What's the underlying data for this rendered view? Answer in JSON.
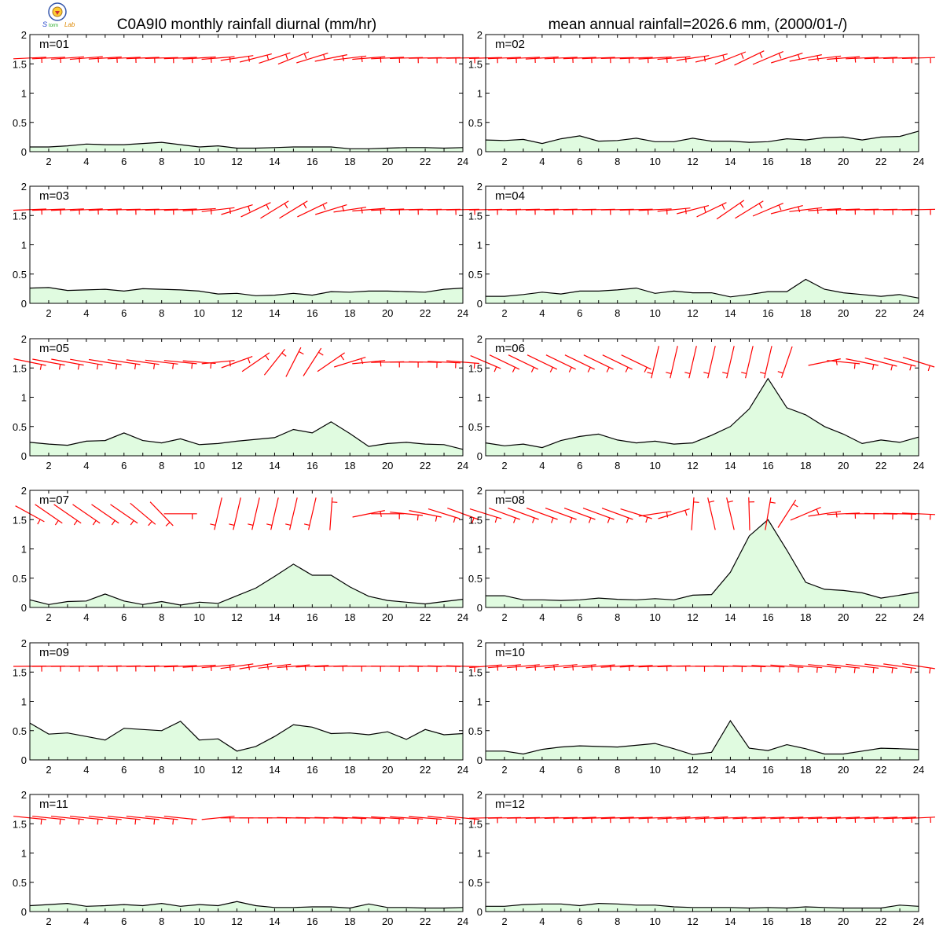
{
  "title_left": "C0A9I0 monthly rainfall diurnal (mm/hr)",
  "title_right": "mean annual rainfall=2026.6 mm, (2000/01-/)",
  "logo": {
    "icon": "weather-logo-icon",
    "text": "Storm Lab"
  },
  "chart_data": {
    "type": "area",
    "xlim": [
      1,
      24
    ],
    "ylim": [
      0,
      2
    ],
    "x_ticks": [
      2,
      4,
      6,
      8,
      10,
      12,
      14,
      16,
      18,
      20,
      22,
      24
    ],
    "y_ticks": [
      "0",
      "0.5",
      "1",
      "1.5",
      "2"
    ],
    "rain_color": "#e0fbe0",
    "barb_color": "#ff0000",
    "panels": [
      {
        "label": "m=01",
        "values": [
          0.08,
          0.08,
          0.1,
          0.13,
          0.12,
          0.12,
          0.14,
          0.16,
          0.12,
          0.08,
          0.1,
          0.06,
          0.06,
          0.07,
          0.08,
          0.08,
          0.08,
          0.05,
          0.05,
          0.06,
          0.07,
          0.07,
          0.06,
          0.07
        ],
        "barb_tilt": [
          0.05,
          0.05,
          0.07,
          0.08,
          0.06,
          0.05,
          0.04,
          0.03,
          0.04,
          0.06,
          0.08,
          0.15,
          0.25,
          0.32,
          0.38,
          0.3,
          0.2,
          0.12,
          0.08,
          0.05,
          0.03,
          0.02,
          0.02,
          0.02
        ]
      },
      {
        "label": "m=02",
        "values": [
          0.2,
          0.19,
          0.21,
          0.14,
          0.22,
          0.27,
          0.18,
          0.19,
          0.23,
          0.17,
          0.17,
          0.23,
          0.18,
          0.18,
          0.16,
          0.17,
          0.22,
          0.2,
          0.24,
          0.25,
          0.2,
          0.25,
          0.26,
          0.35
        ],
        "barb_tilt": [
          0.03,
          0.04,
          0.05,
          0.06,
          0.05,
          0.04,
          0.04,
          0.03,
          0.04,
          0.06,
          0.08,
          0.15,
          0.25,
          0.38,
          0.45,
          0.4,
          0.3,
          0.2,
          0.12,
          0.08,
          0.05,
          0.04,
          0.03,
          0.03
        ],
        "barb_extend": true
      },
      {
        "label": "m=03",
        "values": [
          0.26,
          0.27,
          0.22,
          0.23,
          0.24,
          0.21,
          0.25,
          0.24,
          0.23,
          0.21,
          0.16,
          0.17,
          0.13,
          0.14,
          0.17,
          0.14,
          0.2,
          0.19,
          0.21,
          0.21,
          0.2,
          0.19,
          0.24,
          0.26
        ],
        "barb_tilt": [
          0.04,
          0.04,
          0.05,
          0.05,
          0.04,
          0.03,
          0.03,
          0.03,
          0.04,
          0.06,
          0.12,
          0.3,
          0.45,
          0.55,
          0.55,
          0.45,
          0.3,
          0.15,
          0.08,
          0.04,
          0.03,
          0.02,
          0.02,
          0.02
        ]
      },
      {
        "label": "m=04",
        "values": [
          0.12,
          0.12,
          0.15,
          0.19,
          0.16,
          0.21,
          0.21,
          0.23,
          0.26,
          0.17,
          0.21,
          0.18,
          0.18,
          0.11,
          0.15,
          0.2,
          0.2,
          0.41,
          0.24,
          0.18,
          0.15,
          0.12,
          0.15,
          0.09
        ],
        "barb_tilt": [
          0.02,
          0.02,
          0.03,
          0.03,
          0.03,
          0.02,
          0.02,
          0.02,
          0.03,
          0.05,
          0.1,
          0.25,
          0.45,
          0.6,
          0.55,
          0.4,
          0.25,
          0.12,
          0.06,
          0.04,
          0.03,
          0.02,
          0.02,
          0.02
        ],
        "barb_extend": true
      },
      {
        "label": "m=05",
        "values": [
          0.23,
          0.2,
          0.18,
          0.25,
          0.26,
          0.39,
          0.26,
          0.22,
          0.29,
          0.19,
          0.21,
          0.25,
          0.28,
          0.31,
          0.45,
          0.39,
          0.58,
          0.38,
          0.16,
          0.21,
          0.23,
          0.2,
          0.19,
          0.11
        ],
        "barb_tilt": [
          -0.2,
          -0.18,
          -0.18,
          -0.17,
          -0.16,
          -0.15,
          -0.14,
          -0.12,
          -0.1,
          -0.08,
          0.1,
          0.35,
          0.6,
          0.9,
          1.1,
          1.0,
          0.6,
          0.3,
          0.1,
          0.02,
          0.0,
          -0.02,
          -0.05,
          -0.08
        ]
      },
      {
        "label": "m=06",
        "values": [
          0.22,
          0.17,
          0.2,
          0.14,
          0.26,
          0.33,
          0.37,
          0.27,
          0.22,
          0.25,
          0.2,
          0.22,
          0.35,
          0.5,
          0.8,
          1.32,
          0.82,
          0.7,
          0.5,
          0.37,
          0.21,
          0.27,
          0.23,
          0.32
        ],
        "barb_tilt": [
          -0.4,
          -0.45,
          -0.45,
          -0.45,
          -0.45,
          -0.45,
          -0.45,
          -0.45,
          -0.45,
          -1.8,
          -1.8,
          -1.8,
          -1.8,
          -1.8,
          -1.8,
          -1.8,
          -1.9,
          null,
          0.2,
          -0.1,
          -0.2,
          -0.25,
          -0.25,
          -0.3
        ],
        "barb_extend": true
      },
      {
        "label": "m=07",
        "values": [
          0.13,
          0.05,
          0.1,
          0.11,
          0.23,
          0.11,
          0.05,
          0.1,
          0.04,
          0.09,
          0.07,
          0.2,
          0.33,
          0.53,
          0.74,
          0.55,
          0.55,
          0.35,
          0.19,
          0.12,
          0.09,
          0.06,
          0.1,
          0.14
        ],
        "barb_tilt": [
          -0.5,
          -0.6,
          -0.6,
          -0.6,
          -0.6,
          -0.6,
          -0.7,
          -0.8,
          0.0,
          null,
          -1.8,
          -1.8,
          -1.8,
          -1.8,
          -1.8,
          -1.8,
          1.5,
          null,
          0.2,
          0.0,
          -0.1,
          -0.2,
          -0.3,
          -0.35
        ]
      },
      {
        "label": "m=08",
        "values": [
          0.2,
          0.2,
          0.13,
          0.13,
          0.12,
          0.13,
          0.16,
          0.14,
          0.13,
          0.15,
          0.13,
          0.21,
          0.22,
          0.6,
          1.22,
          1.5,
          0.98,
          0.43,
          0.31,
          0.29,
          0.25,
          0.16,
          0.21,
          0.26
        ],
        "barb_tilt": [
          -0.3,
          -0.35,
          -0.35,
          -0.35,
          -0.35,
          -0.35,
          -0.35,
          -0.35,
          -0.3,
          0.15,
          0.3,
          1.5,
          1.8,
          1.8,
          1.6,
          1.4,
          1.0,
          0.4,
          0.15,
          0.05,
          0.0,
          -0.02,
          -0.03,
          -0.05
        ],
        "barb_extend": true
      },
      {
        "label": "m=09",
        "values": [
          0.63,
          0.44,
          0.46,
          0.4,
          0.34,
          0.54,
          0.52,
          0.5,
          0.66,
          0.34,
          0.36,
          0.15,
          0.23,
          0.4,
          0.6,
          0.56,
          0.45,
          0.46,
          0.43,
          0.48,
          0.35,
          0.52,
          0.43,
          0.45
        ],
        "barb_tilt": [
          0.01,
          0.01,
          0.01,
          0.02,
          0.02,
          0.02,
          0.02,
          0.03,
          0.04,
          0.06,
          0.09,
          0.14,
          0.16,
          0.12,
          0.08,
          0.05,
          0.03,
          0.01,
          0.0,
          -0.01,
          -0.01,
          -0.02,
          -0.02,
          -0.03
        ]
      },
      {
        "label": "m=10",
        "values": [
          0.15,
          0.15,
          0.1,
          0.18,
          0.22,
          0.24,
          0.23,
          0.22,
          0.25,
          0.28,
          0.19,
          0.09,
          0.13,
          0.67,
          0.2,
          0.16,
          0.26,
          0.19,
          0.1,
          0.1,
          0.15,
          0.2,
          0.19,
          0.18
        ],
        "barb_tilt": [
          0.08,
          0.09,
          0.09,
          0.1,
          0.1,
          0.09,
          0.08,
          0.06,
          0.05,
          0.04,
          0.03,
          0.0,
          -0.01,
          -0.02,
          -0.03,
          -0.05,
          -0.07,
          -0.09,
          -0.1,
          -0.11,
          -0.12,
          -0.13,
          -0.14,
          -0.15
        ],
        "barb_extend": true
      },
      {
        "label": "m=11",
        "values": [
          0.1,
          0.12,
          0.14,
          0.09,
          0.1,
          0.12,
          0.1,
          0.14,
          0.09,
          0.12,
          0.1,
          0.17,
          0.1,
          0.07,
          0.07,
          0.08,
          0.08,
          0.06,
          0.13,
          0.07,
          0.07,
          0.06,
          0.06,
          0.07
        ],
        "barb_tilt": [
          -0.1,
          -0.1,
          -0.1,
          -0.1,
          -0.1,
          -0.1,
          -0.1,
          -0.1,
          -0.1,
          null,
          0.1,
          0.0,
          0.0,
          0.0,
          -0.02,
          -0.02,
          -0.03,
          -0.04,
          -0.05,
          -0.06,
          -0.07,
          -0.08,
          -0.09,
          -0.1
        ]
      },
      {
        "label": "m=12",
        "values": [
          0.09,
          0.09,
          0.12,
          0.13,
          0.13,
          0.1,
          0.14,
          0.13,
          0.11,
          0.11,
          0.08,
          0.07,
          0.07,
          0.07,
          0.06,
          0.07,
          0.06,
          0.08,
          0.07,
          0.06,
          0.06,
          0.06,
          0.11,
          0.09
        ],
        "barb_tilt": [
          0.02,
          0.02,
          0.02,
          0.03,
          0.03,
          0.04,
          0.04,
          0.04,
          0.04,
          0.05,
          0.06,
          0.06,
          0.06,
          0.05,
          0.05,
          0.05,
          0.05,
          0.05,
          0.05,
          0.05,
          0.05,
          0.05,
          0.05,
          0.05
        ],
        "barb_extend": true
      }
    ]
  }
}
